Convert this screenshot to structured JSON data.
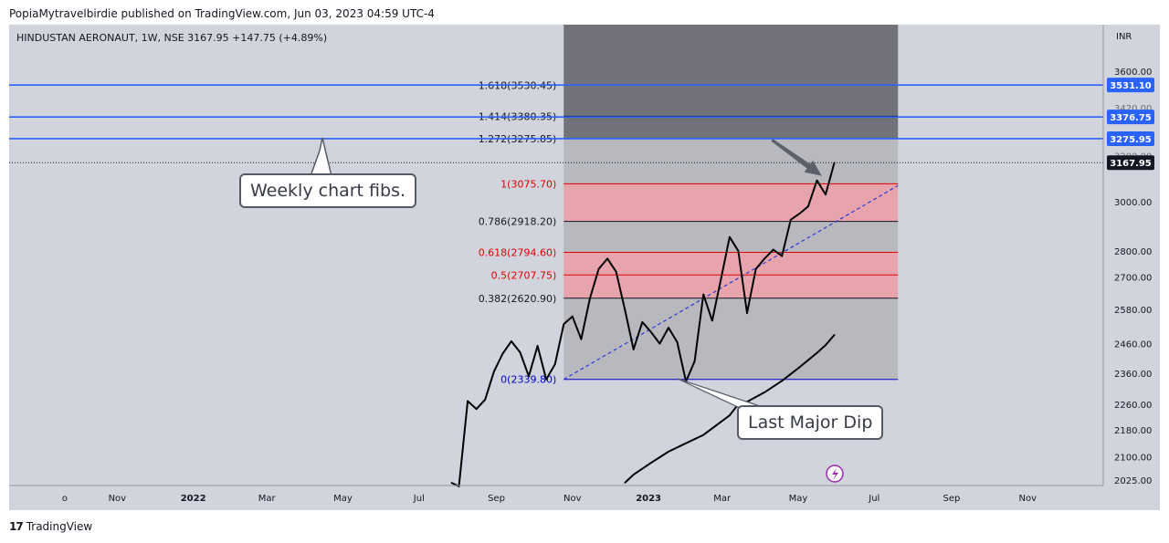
{
  "header": {
    "attribution": "PopiaMytravelbirdie published on TradingView.com, Jun 03, 2023 04:59 UTC-4",
    "symbol_title": "HINDUSTAN AERONAUT, 1W, NSE  3167.95  +147.75 (+4.89%)"
  },
  "footer": {
    "logo_mark": "17",
    "brand": "TradingView"
  },
  "callouts": {
    "weekly": "Weekly chart fibs.",
    "dip": "Last Major Dip"
  },
  "colors": {
    "background": "#d1d4dc",
    "price_line": "#000000",
    "moving_average": "#000000",
    "horizontal_line": "#2962ff",
    "fib_red": "#e00000",
    "fib_dark": "#131722",
    "fib_blue": "#0000cc",
    "red_zone": "#e8a4ac",
    "gray_zone": "#b8b9be",
    "dark_zone": "#72727a",
    "trendline": "#2b3bd6",
    "price_label_bg": "#2962ff",
    "last_price_bg": "#131722"
  },
  "chart_data": {
    "type": "line",
    "title": "HINDUSTAN AERONAUT, 1W, NSE",
    "currency": "INR",
    "last_price": 3167.95,
    "last_price_label": "3167.95",
    "change": "+147.75 (+4.89%)",
    "y_scale": "log",
    "ylim": [
      2025,
      3800
    ],
    "y_ticks": [
      "3600.00",
      "3000.00",
      "2800.00",
      "2700.00",
      "2580.00",
      "2460.00",
      "2360.00",
      "2260.00",
      "2180.00",
      "2100.00",
      "2025.00"
    ],
    "x_ticks": [
      {
        "label": "o",
        "date": "2021-09-20"
      },
      {
        "label": "Nov",
        "date": "2021-11-01"
      },
      {
        "label": "2022",
        "date": "2022-01-01"
      },
      {
        "label": "Mar",
        "date": "2022-03-01"
      },
      {
        "label": "May",
        "date": "2022-05-01"
      },
      {
        "label": "Jul",
        "date": "2022-07-01"
      },
      {
        "label": "Sep",
        "date": "2022-09-01"
      },
      {
        "label": "Nov",
        "date": "2022-11-01"
      },
      {
        "label": "2023",
        "date": "2023-01-01"
      },
      {
        "label": "Mar",
        "date": "2023-03-01"
      },
      {
        "label": "May",
        "date": "2023-05-01"
      },
      {
        "label": "Jul",
        "date": "2023-07-01"
      },
      {
        "label": "Sep",
        "date": "2023-09-01"
      },
      {
        "label": "Nov",
        "date": "2023-11-01"
      }
    ],
    "series": [
      {
        "type": "line",
        "values": [
          {
            "x": "2022-07-27",
            "y": 2025
          },
          {
            "x": "2022-08-02",
            "y": 2015
          },
          {
            "x": "2022-08-09",
            "y": 2270
          },
          {
            "x": "2022-08-16",
            "y": 2245
          },
          {
            "x": "2022-08-23",
            "y": 2275
          },
          {
            "x": "2022-08-30",
            "y": 2365
          },
          {
            "x": "2022-09-06",
            "y": 2425
          },
          {
            "x": "2022-09-13",
            "y": 2468
          },
          {
            "x": "2022-09-20",
            "y": 2430
          },
          {
            "x": "2022-09-27",
            "y": 2350
          },
          {
            "x": "2022-10-04",
            "y": 2452
          },
          {
            "x": "2022-10-11",
            "y": 2340
          },
          {
            "x": "2022-10-18",
            "y": 2390
          },
          {
            "x": "2022-10-25",
            "y": 2528
          },
          {
            "x": "2022-11-01",
            "y": 2555
          },
          {
            "x": "2022-11-08",
            "y": 2475
          },
          {
            "x": "2022-11-15",
            "y": 2620
          },
          {
            "x": "2022-11-22",
            "y": 2730
          },
          {
            "x": "2022-11-29",
            "y": 2770
          },
          {
            "x": "2022-12-06",
            "y": 2720
          },
          {
            "x": "2022-12-13",
            "y": 2580
          },
          {
            "x": "2022-12-20",
            "y": 2440
          },
          {
            "x": "2022-12-27",
            "y": 2535
          },
          {
            "x": "2023-01-03",
            "y": 2500
          },
          {
            "x": "2023-01-10",
            "y": 2460
          },
          {
            "x": "2023-01-17",
            "y": 2515
          },
          {
            "x": "2023-01-24",
            "y": 2465
          },
          {
            "x": "2023-01-31",
            "y": 2333
          },
          {
            "x": "2023-02-07",
            "y": 2400
          },
          {
            "x": "2023-02-14",
            "y": 2635
          },
          {
            "x": "2023-02-21",
            "y": 2540
          },
          {
            "x": "2023-02-28",
            "y": 2690
          },
          {
            "x": "2023-03-07",
            "y": 2855
          },
          {
            "x": "2023-03-14",
            "y": 2800
          },
          {
            "x": "2023-03-21",
            "y": 2567
          },
          {
            "x": "2023-03-28",
            "y": 2730
          },
          {
            "x": "2023-04-04",
            "y": 2770
          },
          {
            "x": "2023-04-11",
            "y": 2805
          },
          {
            "x": "2023-04-18",
            "y": 2780
          },
          {
            "x": "2023-04-25",
            "y": 2925
          },
          {
            "x": "2023-05-02",
            "y": 2950
          },
          {
            "x": "2023-05-09",
            "y": 2980
          },
          {
            "x": "2023-05-16",
            "y": 3090
          },
          {
            "x": "2023-05-23",
            "y": 3030
          },
          {
            "x": "2023-05-30",
            "y": 3167.95
          }
        ]
      },
      {
        "type": "line",
        "values": [
          {
            "x": "2022-12-13",
            "y": 2025
          },
          {
            "x": "2022-12-20",
            "y": 2048
          },
          {
            "x": "2023-01-03",
            "y": 2082
          },
          {
            "x": "2023-01-17",
            "y": 2115
          },
          {
            "x": "2023-01-31",
            "y": 2140
          },
          {
            "x": "2023-02-14",
            "y": 2165
          },
          {
            "x": "2023-02-28",
            "y": 2205
          },
          {
            "x": "2023-03-07",
            "y": 2225
          },
          {
            "x": "2023-03-14",
            "y": 2260
          },
          {
            "x": "2023-03-21",
            "y": 2268
          },
          {
            "x": "2023-04-04",
            "y": 2298
          },
          {
            "x": "2023-04-18",
            "y": 2335
          },
          {
            "x": "2023-05-02",
            "y": 2380
          },
          {
            "x": "2023-05-16",
            "y": 2428
          },
          {
            "x": "2023-05-23",
            "y": 2455
          },
          {
            "x": "2023-05-30",
            "y": 2490
          }
        ]
      }
    ],
    "fib_levels": [
      {
        "ratio": "0",
        "price": 2339.8,
        "label": "0(2339.80)",
        "color": "fib_blue"
      },
      {
        "ratio": "0.382",
        "price": 2620.9,
        "label": "0.382(2620.90)",
        "color": "fib_dark"
      },
      {
        "ratio": "0.5",
        "price": 2707.75,
        "label": "0.5(2707.75)",
        "color": "fib_red"
      },
      {
        "ratio": "0.618",
        "price": 2794.6,
        "label": "0.618(2794.60)",
        "color": "fib_red"
      },
      {
        "ratio": "0.786",
        "price": 2918.2,
        "label": "0.786(2918.20)",
        "color": "fib_dark"
      },
      {
        "ratio": "1",
        "price": 3075.7,
        "label": "1(3075.70)",
        "color": "fib_red"
      },
      {
        "ratio": "1.272",
        "price": 3275.85,
        "label": "1.272(3275.85)",
        "color": "fib_dark"
      },
      {
        "ratio": "1.414",
        "price": 3380.35,
        "label": "1.414(3380.35)",
        "color": "fib_dark"
      },
      {
        "ratio": "1.618",
        "price": 3530.45,
        "label": "1.618(3530.45)",
        "color": "fib_dark"
      }
    ],
    "fib_range": {
      "start": "2022-10-25",
      "end": "2023-07-20"
    },
    "horizontal_lines": [
      {
        "price": 3531.1,
        "label": "3531.10"
      },
      {
        "price": 3376.75,
        "label": "3376.75"
      },
      {
        "price": 3275.95,
        "label": "3275.95"
      }
    ],
    "price_axis_partial_labels": [
      "3420.00",
      "3200.00"
    ],
    "trendline": {
      "x0": "2022-10-25",
      "y0": 2339.8,
      "x1": "2023-07-20",
      "y1": 3068
    },
    "arrow": {
      "x0": "2023-04-10",
      "y0": 3270,
      "x1": "2023-05-20",
      "y1": 3110
    }
  }
}
